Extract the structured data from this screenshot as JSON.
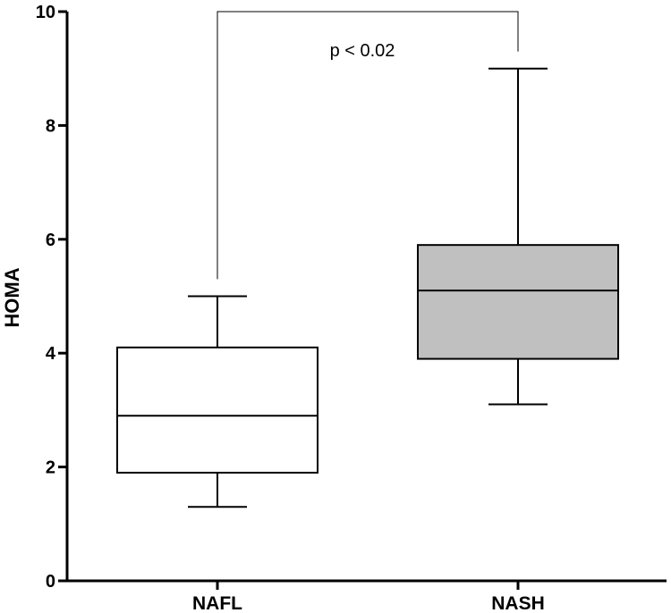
{
  "chart_data": {
    "type": "box",
    "ylabel": "HOMA",
    "xlabel": "",
    "ylim": [
      0,
      10
    ],
    "yticks": [
      0,
      2,
      4,
      6,
      8,
      10
    ],
    "categories": [
      "NAFL",
      "NASH"
    ],
    "series": [
      {
        "name": "NAFL",
        "min": 1.3,
        "q1": 1.9,
        "median": 2.9,
        "q3": 4.1,
        "max": 5.0,
        "fill": "#ffffff"
      },
      {
        "name": "NASH",
        "min": 3.1,
        "q1": 3.9,
        "median": 5.1,
        "q3": 5.9,
        "max": 9.0,
        "fill": "#c0c0c0"
      }
    ],
    "annotation": {
      "text": "p < 0.02",
      "bracket_y": 10,
      "left_end": 5.3,
      "right_end": 9.3
    }
  }
}
